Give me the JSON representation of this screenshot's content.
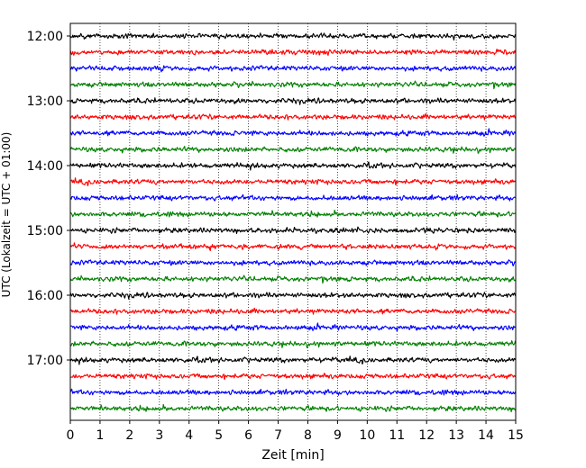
{
  "chart_data": {
    "type": "line",
    "title": "",
    "xlabel": "Zeit  [min]",
    "ylabel": "UTC (Lokalzeit = UTC + 01:00)",
    "xlim": [
      0,
      15
    ],
    "x_ticks": [
      "0",
      "1",
      "2",
      "3",
      "4",
      "5",
      "6",
      "7",
      "8",
      "9",
      "10",
      "11",
      "12",
      "13",
      "14",
      "15"
    ],
    "grid": "vertical dotted",
    "legend": "none",
    "y_ticks": [
      "12:00",
      "13:00",
      "14:00",
      "15:00",
      "16:00",
      "17:00"
    ],
    "series": [
      {
        "start": "12:00",
        "color": "#000000"
      },
      {
        "start": "12:15",
        "color": "#ff0000"
      },
      {
        "start": "12:30",
        "color": "#0000ff"
      },
      {
        "start": "12:45",
        "color": "#008000"
      },
      {
        "start": "13:00",
        "color": "#000000"
      },
      {
        "start": "13:15",
        "color": "#ff0000"
      },
      {
        "start": "13:30",
        "color": "#0000ff"
      },
      {
        "start": "13:45",
        "color": "#008000"
      },
      {
        "start": "14:00",
        "color": "#000000"
      },
      {
        "start": "14:15",
        "color": "#ff0000"
      },
      {
        "start": "14:30",
        "color": "#0000ff"
      },
      {
        "start": "14:45",
        "color": "#008000"
      },
      {
        "start": "15:00",
        "color": "#000000"
      },
      {
        "start": "15:15",
        "color": "#ff0000"
      },
      {
        "start": "15:30",
        "color": "#0000ff"
      },
      {
        "start": "15:45",
        "color": "#008000"
      },
      {
        "start": "16:00",
        "color": "#000000"
      },
      {
        "start": "16:15",
        "color": "#ff0000"
      },
      {
        "start": "16:30",
        "color": "#0000ff"
      },
      {
        "start": "16:45",
        "color": "#008000"
      },
      {
        "start": "17:00",
        "color": "#000000"
      },
      {
        "start": "17:15",
        "color": "#ff0000"
      },
      {
        "start": "17:30",
        "color": "#0000ff"
      },
      {
        "start": "17:45",
        "color": "#008000"
      }
    ]
  }
}
